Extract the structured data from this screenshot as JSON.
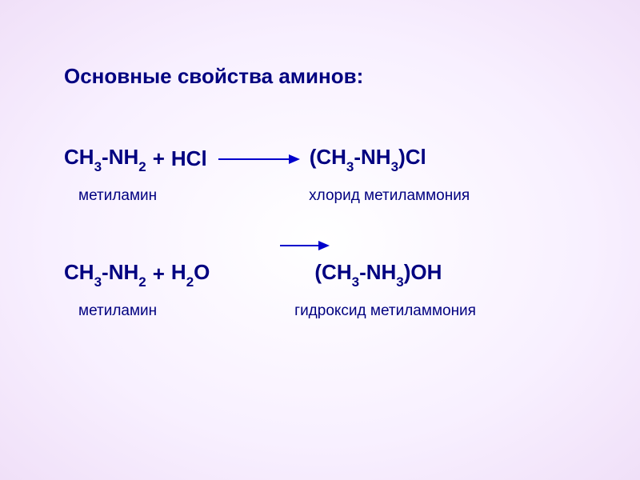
{
  "title": "Основные свойства аминов:",
  "equation1": {
    "reactant1_part1": "CH",
    "reactant1_sub1": "3",
    "reactant1_part2": "-NH",
    "reactant1_sub2": "2",
    "plus": " + ",
    "reactant2": "HCl",
    "product_part1": "(CH",
    "product_sub1": "3",
    "product_part2": "-NH",
    "product_sub2": "3",
    "product_part3": ")Cl",
    "label_left": "метиламин",
    "label_right": "хлорид метиламмония"
  },
  "equation2": {
    "reactant1_part1": "CH",
    "reactant1_sub1": "3",
    "reactant1_part2": "-NH",
    "reactant1_sub2": "2",
    "plus": " + ",
    "reactant2_part1": "H",
    "reactant2_sub1": "2",
    "reactant2_part2": "O",
    "product_part1": "(CH",
    "product_sub1": "3",
    "product_part2": "-NH",
    "product_sub2": "3",
    "product_part3": ")OH",
    "label_left": "метиламин",
    "label_right": "гидроксид метиламмония"
  },
  "colors": {
    "text": "#000080",
    "arrow": "#0000cc",
    "bg_center": "#ffffff",
    "bg_edge": "#f0e0f8"
  },
  "typography": {
    "title_fontsize": 26,
    "equation_fontsize": 26,
    "label_fontsize": 19,
    "sub_fontsize": 17,
    "font_family": "Arial"
  }
}
